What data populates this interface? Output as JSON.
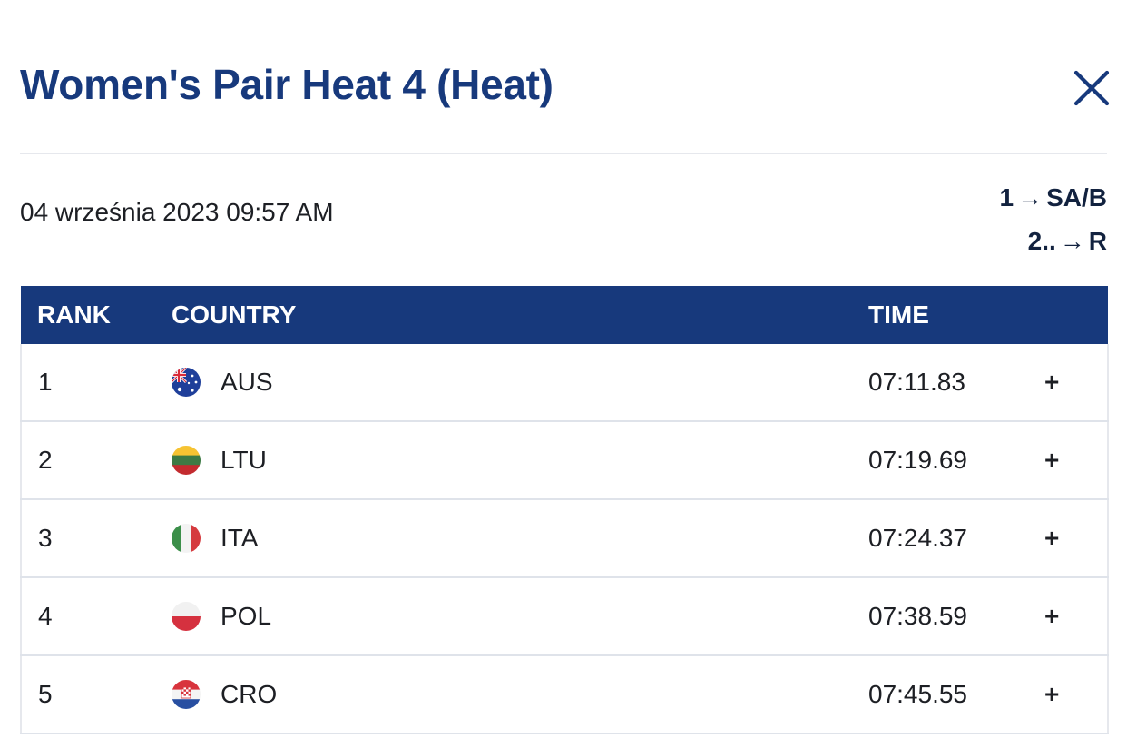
{
  "modal": {
    "title": "Women's Pair Heat 4 (Heat)",
    "close_icon": "close-icon",
    "date": "04 września 2023 09:57 AM",
    "progression": [
      {
        "from": "1",
        "to": "SA/B"
      },
      {
        "from": "2..",
        "to": "R"
      }
    ]
  },
  "table": {
    "headers": {
      "rank": "RANK",
      "country": "COUNTRY",
      "time": "TIME"
    },
    "rows": [
      {
        "rank": "1",
        "country": "AUS",
        "time": "07:11.83",
        "expand": "+"
      },
      {
        "rank": "2",
        "country": "LTU",
        "time": "07:19.69",
        "expand": "+"
      },
      {
        "rank": "3",
        "country": "ITA",
        "time": "07:24.37",
        "expand": "+"
      },
      {
        "rank": "4",
        "country": "POL",
        "time": "07:38.59",
        "expand": "+"
      },
      {
        "rank": "5",
        "country": "CRO",
        "time": "07:45.55",
        "expand": "+"
      }
    ]
  },
  "colors": {
    "brand_navy": "#17397c",
    "divider": "#e6e8ed"
  }
}
